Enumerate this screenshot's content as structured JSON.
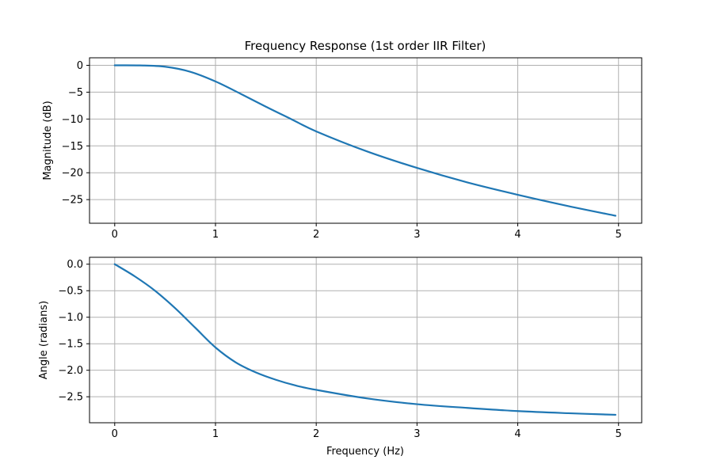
{
  "chart_data": [
    {
      "type": "line",
      "title": "Frequency Response (1st order IIR Filter)",
      "xlabel": "",
      "ylabel": "Magnitude (dB)",
      "xlim": [
        -0.25,
        5.23
      ],
      "ylim": [
        -29.4,
        1.4
      ],
      "xticks": [
        0,
        1,
        2,
        3,
        4,
        5
      ],
      "xtick_labels": [
        "0",
        "1",
        "2",
        "3",
        "4",
        "5"
      ],
      "yticks": [
        0,
        -5,
        -10,
        -15,
        -20,
        -25
      ],
      "ytick_labels": [
        "0",
        "−5",
        "−10",
        "−15",
        "−20",
        "−25"
      ],
      "grid": true,
      "series": [
        {
          "color": "#1f77b4",
          "x": [
            0,
            0.25,
            0.5,
            0.75,
            1.0,
            1.25,
            1.5,
            1.75,
            2.0,
            2.5,
            3.0,
            3.5,
            4.0,
            4.5,
            4.97
          ],
          "y": [
            0,
            -0.02,
            -0.26,
            -1.2,
            -3.0,
            -5.3,
            -7.7,
            -10.0,
            -12.3,
            -16.0,
            -19.1,
            -21.8,
            -24.1,
            -26.2,
            -28.0
          ]
        }
      ]
    },
    {
      "type": "line",
      "title": "",
      "xlabel": "Frequency (Hz)",
      "ylabel": "Angle (radians)",
      "xlim": [
        -0.25,
        5.23
      ],
      "ylim": [
        -2.99,
        0.13
      ],
      "xticks": [
        0,
        1,
        2,
        3,
        4,
        5
      ],
      "xtick_labels": [
        "0",
        "1",
        "2",
        "3",
        "4",
        "5"
      ],
      "yticks": [
        0.0,
        -0.5,
        -1.0,
        -1.5,
        -2.0,
        -2.5
      ],
      "ytick_labels": [
        "0.0",
        "−0.5",
        "−1.0",
        "−1.5",
        "−2.0",
        "−2.5"
      ],
      "grid": true,
      "series": [
        {
          "color": "#1f77b4",
          "x": [
            0,
            0.2,
            0.4,
            0.6,
            0.8,
            1.0,
            1.2,
            1.4,
            1.6,
            1.8,
            2.0,
            2.5,
            3.0,
            3.5,
            4.0,
            4.5,
            4.97
          ],
          "y": [
            0,
            -0.23,
            -0.5,
            -0.83,
            -1.2,
            -1.57,
            -1.85,
            -2.04,
            -2.18,
            -2.29,
            -2.37,
            -2.53,
            -2.64,
            -2.71,
            -2.77,
            -2.81,
            -2.84
          ]
        }
      ]
    }
  ]
}
